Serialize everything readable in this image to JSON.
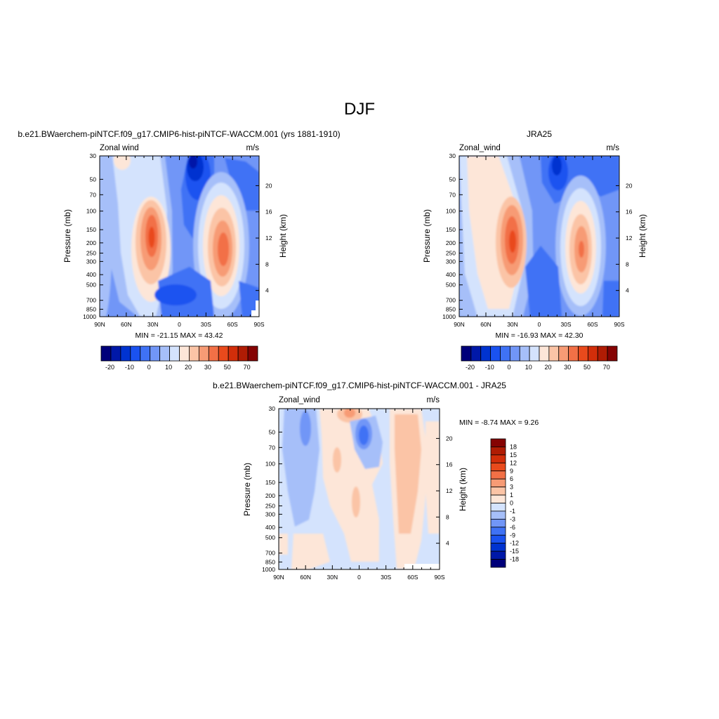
{
  "page": {
    "title": "DJF"
  },
  "chart_data": [
    {
      "type": "heatmap",
      "title": "b.e21.BWaerchem-piNTCF.f09_g17.CMIP6-hist-piNTCF-WACCM.001 (yrs 1881-1910)",
      "left_string": "Zonal wind",
      "right_string": "m/s",
      "xlabel": "",
      "ylabel": "Pressure (mb)",
      "y2label": "Height (km)",
      "x_ticks": [
        "90N",
        "60N",
        "30N",
        "0",
        "30S",
        "60S",
        "90S"
      ],
      "y_ticks": [
        30,
        50,
        70,
        100,
        150,
        200,
        250,
        300,
        400,
        500,
        700,
        850,
        1000
      ],
      "y2_ticks": [
        4,
        8,
        12,
        16,
        20
      ],
      "ylim": [
        1000,
        30
      ],
      "y_scale": "log",
      "stats": "MIN = -21.15  MAX =  43.42",
      "colorbar": {
        "orientation": "horizontal",
        "labels": [
          "-20",
          "-10",
          "0",
          "10",
          "20",
          "30",
          "50",
          "70"
        ]
      },
      "jets": [
        {
          "lat": 30,
          "pressure": 200,
          "peak": 43.4
        },
        {
          "lat": -48,
          "pressure": 200,
          "peak": 36
        }
      ],
      "minimum": {
        "lat": -15,
        "pressure": 30,
        "value": -21.15
      }
    },
    {
      "type": "heatmap",
      "title": "JRA25",
      "left_string": "Zonal_wind",
      "right_string": "m/s",
      "xlabel": "",
      "ylabel": "Pressure (mb)",
      "y2label": "Height (km)",
      "x_ticks": [
        "90N",
        "60N",
        "30N",
        "0",
        "30S",
        "60S",
        "90S"
      ],
      "y_ticks": [
        30,
        50,
        70,
        100,
        150,
        200,
        250,
        300,
        400,
        500,
        700,
        850,
        1000
      ],
      "y2_ticks": [
        4,
        8,
        12,
        16,
        20
      ],
      "ylim": [
        1000,
        30
      ],
      "y_scale": "log",
      "stats": "MIN = -16.93  MAX =  42.30",
      "colorbar": {
        "orientation": "horizontal",
        "labels": [
          "-20",
          "-10",
          "0",
          "10",
          "20",
          "30",
          "50",
          "70"
        ]
      },
      "jets": [
        {
          "lat": 30,
          "pressure": 200,
          "peak": 42.3
        },
        {
          "lat": -48,
          "pressure": 220,
          "peak": 32
        }
      ],
      "minimum": {
        "lat": -15,
        "pressure": 30,
        "value": -16.93
      }
    },
    {
      "type": "heatmap",
      "title": "b.e21.BWaerchem-piNTCF.f09_g17.CMIP6-hist-piNTCF-WACCM.001 - JRA25",
      "left_string": "Zonal_wind",
      "right_string": "m/s",
      "xlabel": "",
      "ylabel": "Pressure (mb)",
      "y2label": "Height (km)",
      "x_ticks": [
        "90N",
        "60N",
        "30N",
        "0",
        "30S",
        "60S",
        "90S"
      ],
      "y_ticks": [
        30,
        50,
        70,
        100,
        150,
        200,
        250,
        300,
        400,
        500,
        700,
        850,
        1000
      ],
      "y2_ticks": [
        4,
        8,
        12,
        16,
        20
      ],
      "ylim": [
        1000,
        30
      ],
      "y_scale": "log",
      "stats": "MIN =  -8.74  MAX =   9.26",
      "colorbar": {
        "orientation": "vertical",
        "labels": [
          "18",
          "15",
          "12",
          "9",
          "6",
          "3",
          "1",
          "0",
          "-1",
          "-3",
          "-6",
          "-9",
          "-12",
          "-15",
          "-18"
        ]
      },
      "maximum": {
        "lat": 0,
        "pressure": 30,
        "value": 9.26
      },
      "minimum": {
        "lat": -5,
        "pressure": 55,
        "value": -8.74
      }
    }
  ],
  "colors": {
    "panel_scale": [
      "#00007a",
      "#0018a8",
      "#0033d0",
      "#1a52f0",
      "#3f72f5",
      "#7196f7",
      "#a6bff9",
      "#d4e3fd",
      "#fde6d8",
      "#fbc4a6",
      "#f79b75",
      "#f27046",
      "#e94a1c",
      "#d22e0a",
      "#b01c04",
      "#850303"
    ],
    "diff_scale": [
      "#00007a",
      "#0018a8",
      "#0033d0",
      "#1a52f0",
      "#3f72f5",
      "#7196f7",
      "#a6bff9",
      "#d4e3fd",
      "#fde6d8",
      "#fbc4a6",
      "#f79b75",
      "#f27046",
      "#e94a1c",
      "#d22e0a",
      "#b01c04",
      "#850303"
    ]
  }
}
